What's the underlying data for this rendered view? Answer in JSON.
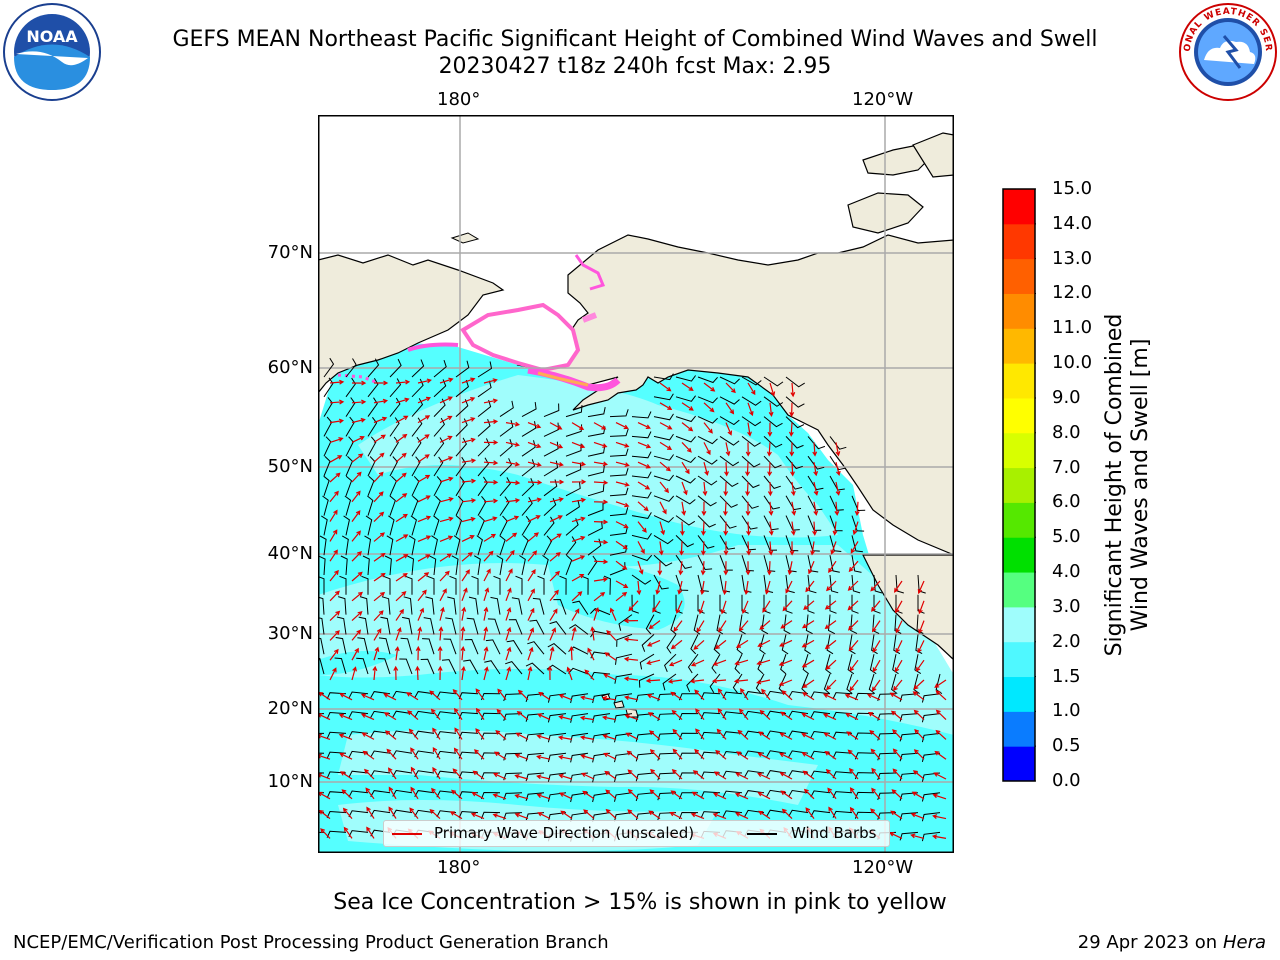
{
  "title": {
    "line1": "GEFS MEAN Northeast Pacific Significant Height of Combined Wind Waves and Swell",
    "line2": "20230427 t18z 240h fcst   Max: 2.95"
  },
  "logos": {
    "left": {
      "name": "noaa-logo",
      "text": "NOAA"
    },
    "right": {
      "name": "nws-logo",
      "text": "NATIONAL WEATHER SERVICE"
    }
  },
  "map": {
    "top_lon_labels": [
      "180°",
      "120°W"
    ],
    "bottom_lon_labels": [
      "180°",
      "120°W"
    ],
    "lat_labels": [
      "70°N",
      "60°N",
      "50°N",
      "40°N",
      "30°N",
      "20°N",
      "10°N"
    ],
    "land_color": "#efecdc",
    "ocean_color": "#55ffff",
    "legend": {
      "wave_label": "Primary Wave Direction (unscaled)",
      "wave_color": "#e00000",
      "barb_label": "Wind Barbs",
      "barb_color": "#000000"
    }
  },
  "colorbar": {
    "label_line1": "Significant Height of Combined",
    "label_line2": "Wind Waves and Swell [m]",
    "ticks": [
      "0.0",
      "0.5",
      "1.0",
      "1.5",
      "2.0",
      "3.0",
      "4.0",
      "5.0",
      "6.0",
      "7.0",
      "8.0",
      "9.0",
      "10.0",
      "11.0",
      "12.0",
      "13.0",
      "14.0",
      "15.0"
    ],
    "colors": [
      "#0000ff",
      "#0a7cff",
      "#00e8ff",
      "#4ff8ff",
      "#9ffdfc",
      "#55ff80",
      "#00e000",
      "#55e800",
      "#a8f000",
      "#d8ff00",
      "#ffff00",
      "#ffe800",
      "#ffb800",
      "#ff8c00",
      "#ff6000",
      "#ff3800",
      "#ff0000"
    ]
  },
  "footer": {
    "ice_note": "Sea Ice Concentration > 15% is shown in pink to yellow",
    "left": "NCEP/EMC/Verification Post Processing Product Generation Branch",
    "right_date": "29 Apr 2023 on ",
    "right_host": "Hera"
  }
}
